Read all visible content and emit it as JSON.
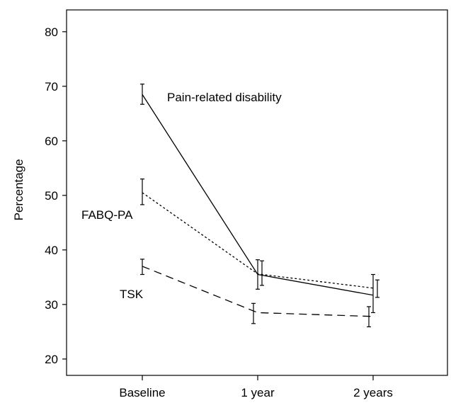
{
  "chart_data": {
    "type": "line",
    "title": "",
    "xlabel": "",
    "ylabel": "Percentage",
    "categories": [
      "Baseline",
      "1 year",
      "2 years"
    ],
    "ylim": [
      17,
      84
    ],
    "yticks": [
      20,
      30,
      40,
      50,
      60,
      70,
      80
    ],
    "grid": false,
    "legend": "none",
    "series": [
      {
        "name": "Pain-related disability",
        "style": "solid",
        "values": [
          68.5,
          35.5,
          31.7
        ],
        "error_low": [
          66.7,
          32.8,
          28.5
        ],
        "error_high": [
          70.4,
          38.2,
          35.5
        ]
      },
      {
        "name": "FABQ-PA",
        "style": "dotted",
        "values": [
          50.5,
          35.6,
          33.0
        ],
        "error_low": [
          48.3,
          33.5,
          31.3
        ],
        "error_high": [
          53.0,
          38.0,
          34.5
        ]
      },
      {
        "name": "TSK",
        "style": "dashed",
        "values": [
          37.0,
          28.5,
          27.8
        ],
        "error_low": [
          35.5,
          26.5,
          25.9
        ],
        "error_high": [
          38.3,
          30.2,
          29.6
        ]
      }
    ]
  }
}
